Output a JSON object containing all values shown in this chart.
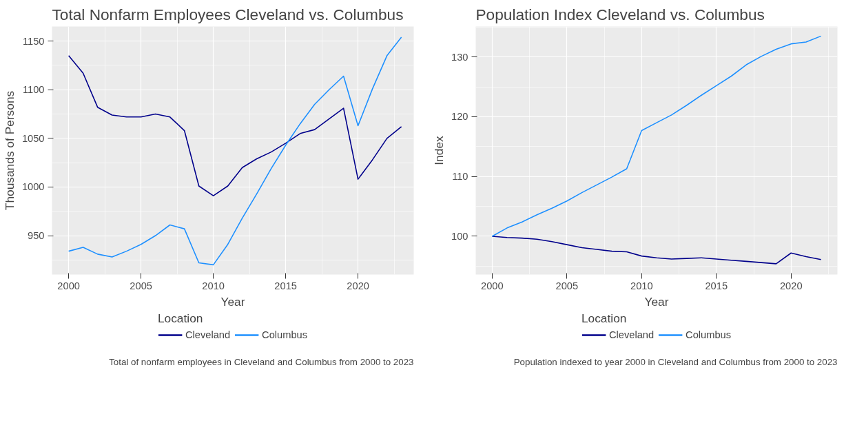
{
  "chart_data": [
    {
      "type": "line",
      "title": "Total Nonfarm Employees Cleveland vs. Columbus",
      "xlabel": "Year",
      "ylabel": "Thousands of Persons",
      "legend_title": "Location",
      "legend": "bottom",
      "grid": true,
      "x": [
        2000,
        2001,
        2002,
        2003,
        2004,
        2005,
        2006,
        2007,
        2008,
        2009,
        2010,
        2011,
        2012,
        2013,
        2014,
        2015,
        2016,
        2017,
        2018,
        2019,
        2020,
        2021,
        2022,
        2023
      ],
      "series": [
        {
          "name": "Cleveland",
          "color": "#00008b",
          "values": [
            1135,
            1117,
            1082,
            1074,
            1072,
            1072,
            1075,
            1072,
            1058,
            1001,
            991,
            1001,
            1020,
            1029,
            1036,
            1045,
            1055,
            1059,
            1070,
            1081,
            1008,
            1028,
            1050,
            1062
          ]
        },
        {
          "name": "Columbus",
          "color": "#1e90ff",
          "values": [
            934,
            938,
            931,
            928,
            934,
            941,
            950,
            961,
            957,
            922,
            920,
            941,
            968,
            993,
            1019,
            1043,
            1065,
            1085,
            1100,
            1114,
            1063,
            1101,
            1135,
            1154
          ]
        }
      ],
      "xlim": [
        1998.85,
        2023.85
      ],
      "xticks": [
        2000,
        2005,
        2010,
        2015,
        2020
      ],
      "ylim": [
        910,
        1165
      ],
      "yticks": [
        950,
        1000,
        1050,
        1100,
        1150
      ],
      "annotations": [
        "Total of nonfarm employees in Cleveland and Columbus from 2000 to 2023"
      ]
    },
    {
      "type": "line",
      "title": "Population Index Cleveland vs. Columbus",
      "xlabel": "Year",
      "ylabel": "Index",
      "legend_title": "Location",
      "legend": "bottom",
      "grid": true,
      "x": [
        2000,
        2001,
        2002,
        2003,
        2004,
        2005,
        2006,
        2007,
        2008,
        2009,
        2010,
        2011,
        2012,
        2013,
        2014,
        2015,
        2016,
        2017,
        2018,
        2019,
        2020,
        2021,
        2022
      ],
      "series": [
        {
          "name": "Cleveland",
          "color": "#00008b",
          "values": [
            100,
            99.8,
            99.7,
            99.5,
            99.1,
            98.6,
            98.1,
            97.8,
            97.5,
            97.4,
            96.7,
            96.4,
            96.2,
            96.3,
            96.4,
            96.2,
            96.0,
            95.8,
            95.6,
            95.4,
            97.2,
            96.6,
            96.1
          ]
        },
        {
          "name": "Columbus",
          "color": "#1e90ff",
          "values": [
            100,
            101.4,
            102.4,
            103.6,
            104.7,
            105.9,
            107.3,
            108.6,
            109.9,
            111.3,
            117.7,
            119.0,
            120.3,
            121.9,
            123.6,
            125.2,
            126.8,
            128.7,
            130.1,
            131.3,
            132.2,
            132.5,
            133.5
          ]
        }
      ],
      "xlim": [
        1998.9,
        2023.1
      ],
      "xticks": [
        2000,
        2005,
        2010,
        2015,
        2020
      ],
      "ylim": [
        93.6,
        135.1
      ],
      "yticks": [
        100,
        110,
        120,
        130
      ],
      "annotations": [
        "Population indexed to year 2000 in Cleveland and Columbus from 2000 to 2023"
      ]
    }
  ]
}
